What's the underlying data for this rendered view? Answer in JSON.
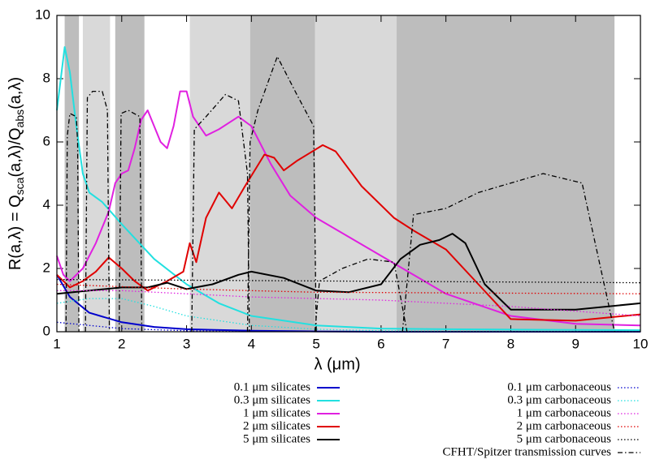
{
  "chart_data": {
    "type": "line",
    "xlabel": "λ (μm)",
    "ylabel": [
      "R(a,λ) = Q",
      "sca",
      "(a,λ)/Q",
      "abs",
      "(a,λ)"
    ],
    "xlim": [
      1,
      10
    ],
    "ylim": [
      0,
      10
    ],
    "xticks": [
      1,
      2,
      3,
      4,
      5,
      6,
      7,
      8,
      9,
      10
    ],
    "yticks": [
      0,
      2,
      4,
      6,
      8,
      10
    ],
    "bands": [
      {
        "xlim": [
          1.12,
          1.34
        ],
        "color": "#bdbdbd"
      },
      {
        "xlim": [
          1.4,
          1.82
        ],
        "color": "#d9d9d9"
      },
      {
        "xlim": [
          1.9,
          2.35
        ],
        "color": "#bdbdbd"
      },
      {
        "xlim": [
          3.05,
          3.98
        ],
        "color": "#d9d9d9"
      },
      {
        "xlim": [
          3.98,
          4.98
        ],
        "color": "#bdbdbd"
      },
      {
        "xlim": [
          4.98,
          6.24
        ],
        "color": "#d9d9d9"
      },
      {
        "xlim": [
          6.24,
          9.6
        ],
        "color": "#bdbdbd"
      }
    ],
    "series": [
      {
        "name": "0.1 μm silicates",
        "color": "#0000cc",
        "style": "solid",
        "x": [
          1,
          1.2,
          1.5,
          2,
          2.5,
          3,
          4,
          5,
          6,
          10
        ],
        "values": [
          1.8,
          1.1,
          0.6,
          0.3,
          0.15,
          0.08,
          0.03,
          0.01,
          0,
          0
        ]
      },
      {
        "name": "0.3 μm silicates",
        "color": "#22e0e0",
        "style": "solid",
        "x": [
          1,
          1.12,
          1.2,
          1.3,
          1.4,
          1.5,
          1.7,
          2,
          2.5,
          3,
          3.5,
          4,
          5,
          6,
          7,
          10
        ],
        "values": [
          7,
          9,
          8.2,
          6.5,
          5,
          4.4,
          4.1,
          3.4,
          2.3,
          1.5,
          0.9,
          0.5,
          0.2,
          0.1,
          0.08,
          0.05
        ]
      },
      {
        "name": "1 μm silicates",
        "color": "#e020e0",
        "style": "solid",
        "x": [
          1,
          1.1,
          1.2,
          1.4,
          1.6,
          1.8,
          1.9,
          2,
          2.1,
          2.2,
          2.3,
          2.4,
          2.6,
          2.7,
          2.8,
          2.9,
          3,
          3.1,
          3.3,
          3.5,
          3.8,
          4,
          4.3,
          4.6,
          5,
          6,
          7,
          8,
          9,
          10
        ],
        "values": [
          2.4,
          1.8,
          1.6,
          2,
          2.8,
          3.8,
          4.7,
          5,
          5.1,
          5.8,
          6.7,
          7,
          6,
          5.8,
          6.5,
          7.6,
          7.6,
          6.8,
          6.2,
          6.4,
          6.8,
          6.5,
          5.3,
          4.3,
          3.6,
          2.4,
          1.2,
          0.5,
          0.25,
          0.2
        ]
      },
      {
        "name": "2 μm silicates",
        "color": "#e00000",
        "style": "solid",
        "x": [
          1,
          1.2,
          1.4,
          1.6,
          1.8,
          2,
          2.2,
          2.4,
          2.7,
          2.95,
          3.05,
          3.15,
          3.3,
          3.5,
          3.7,
          3.9,
          4.2,
          4.35,
          4.5,
          4.7,
          5.1,
          5.3,
          5.7,
          6.2,
          6.5,
          7,
          7.5,
          8,
          9,
          10
        ],
        "values": [
          1.8,
          1.4,
          1.6,
          1.9,
          2.35,
          2,
          1.6,
          1.3,
          1.6,
          1.9,
          2.8,
          2.2,
          3.6,
          4.4,
          3.9,
          4.6,
          5.6,
          5.5,
          5.1,
          5.4,
          5.9,
          5.7,
          4.6,
          3.6,
          3.2,
          2.6,
          1.5,
          0.4,
          0.35,
          0.55
        ]
      },
      {
        "name": "5 μm silicates",
        "color": "#000000",
        "style": "solid",
        "x": [
          1,
          1.5,
          2,
          2.4,
          2.7,
          3,
          3.4,
          3.8,
          4,
          4.5,
          5,
          5.5,
          6,
          6.3,
          6.6,
          6.9,
          7.1,
          7.3,
          7.6,
          8,
          9,
          10
        ],
        "values": [
          1.2,
          1.3,
          1.4,
          1.4,
          1.55,
          1.35,
          1.5,
          1.8,
          1.9,
          1.7,
          1.3,
          1.25,
          1.5,
          2.3,
          2.75,
          2.9,
          3.1,
          2.8,
          1.5,
          0.7,
          0.7,
          0.9
        ]
      },
      {
        "name": "0.1 μm carbonaceous",
        "color": "#0000cc",
        "style": "dotted",
        "x": [
          1,
          2,
          3,
          4,
          10
        ],
        "values": [
          0.3,
          0.1,
          0.03,
          0.01,
          0
        ]
      },
      {
        "name": "0.3 μm carbonaceous",
        "color": "#22e0e0",
        "style": "dotted",
        "x": [
          1,
          1.5,
          2,
          2.5,
          3,
          4,
          5,
          6,
          10
        ],
        "values": [
          0.9,
          1.05,
          1.05,
          0.8,
          0.5,
          0.2,
          0.08,
          0.03,
          0
        ]
      },
      {
        "name": "1 μm carbonaceous",
        "color": "#e020e0",
        "style": "dotted",
        "x": [
          1,
          2,
          4,
          6,
          8,
          10
        ],
        "values": [
          1.3,
          1.3,
          1.1,
          1,
          0.8,
          0.5
        ]
      },
      {
        "name": "2 μm carbonaceous",
        "color": "#e00000",
        "style": "dotted",
        "x": [
          1,
          3,
          5,
          10
        ],
        "values": [
          1.5,
          1.35,
          1.25,
          1.2
        ]
      },
      {
        "name": "5 μm carbonaceous",
        "color": "#000000",
        "style": "dotted",
        "x": [
          1,
          10
        ],
        "values": [
          1.65,
          1.55
        ]
      },
      {
        "name": "CFHT/Spitzer transmission curves",
        "color": "#000000",
        "style": "dashdot",
        "x": [
          1.14,
          1.16,
          1.2,
          1.3,
          1.32,
          1.34,
          null,
          1.44,
          1.47,
          1.55,
          1.7,
          1.78,
          1.81,
          null,
          1.96,
          1.99,
          2.1,
          2.28,
          2.31,
          null,
          3.08,
          3.12,
          3.3,
          3.6,
          3.8,
          3.94,
          3.97,
          null,
          3.94,
          3.98,
          4.1,
          4.4,
          4.7,
          4.96,
          5,
          null,
          4.98,
          5.05,
          5.4,
          5.8,
          6.2,
          6.4,
          null,
          6.33,
          6.5,
          7,
          7.5,
          8.5,
          9.1,
          9.6
        ],
        "values": [
          0,
          6.2,
          6.9,
          6.8,
          6,
          0,
          null,
          0,
          7.4,
          7.6,
          7.6,
          7,
          0,
          null,
          0,
          6.9,
          7,
          6.8,
          0,
          null,
          0,
          6.4,
          6.8,
          7.5,
          7.3,
          5,
          0,
          null,
          0,
          6,
          7,
          8.7,
          7.5,
          6.5,
          0,
          null,
          0,
          1.6,
          2,
          2.3,
          2.2,
          0,
          null,
          0,
          3.7,
          3.9,
          4.4,
          5,
          4.7,
          0
        ]
      }
    ]
  }
}
